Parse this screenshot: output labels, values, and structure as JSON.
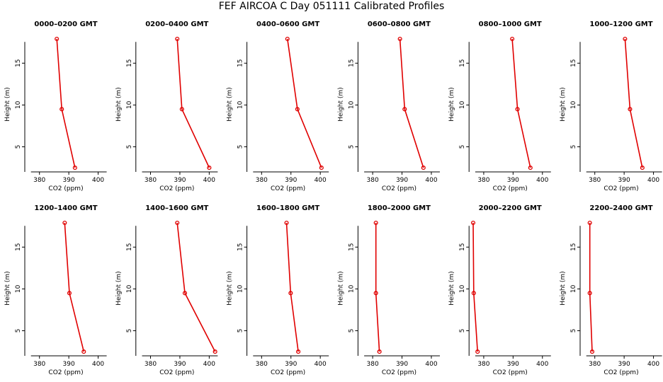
{
  "page": {
    "title": "FEF AIRCOA C  Day 051111  Calibrated Profiles"
  },
  "style": {
    "series_color": "#e00000",
    "axis_color": "#000000",
    "background": "#ffffff"
  },
  "chart_data": [
    {
      "type": "line",
      "title": "0000–0200 GMT",
      "xlabel": "CO2 (ppm)",
      "ylabel": "Height (m)",
      "xlim": [
        375,
        403
      ],
      "ylim": [
        2,
        19
      ],
      "xticks": [
        380,
        390,
        400
      ],
      "yticks": [
        5,
        10,
        15
      ],
      "grid": false,
      "x": [
        392.1,
        387.6,
        385.9
      ],
      "y": [
        2.5,
        9.5,
        17.9
      ]
    },
    {
      "type": "line",
      "title": "0200–0400 GMT",
      "xlabel": "CO2 (ppm)",
      "ylabel": "Height (m)",
      "xlim": [
        375,
        403
      ],
      "ylim": [
        2,
        19
      ],
      "xticks": [
        380,
        390,
        400
      ],
      "yticks": [
        5,
        10,
        15
      ],
      "grid": false,
      "x": [
        400.0,
        390.7,
        389.1
      ],
      "y": [
        2.5,
        9.5,
        17.9
      ]
    },
    {
      "type": "line",
      "title": "0400–0600 GMT",
      "xlabel": "CO2 (ppm)",
      "ylabel": "Height (m)",
      "xlim": [
        375,
        403
      ],
      "ylim": [
        2,
        19
      ],
      "xticks": [
        380,
        390,
        400
      ],
      "yticks": [
        5,
        10,
        15
      ],
      "grid": false,
      "x": [
        400.4,
        392.2,
        388.8
      ],
      "y": [
        2.5,
        9.5,
        17.9
      ]
    },
    {
      "type": "line",
      "title": "0600–0800 GMT",
      "xlabel": "CO2 (ppm)",
      "ylabel": "Height (m)",
      "xlim": [
        375,
        403
      ],
      "ylim": [
        2,
        19
      ],
      "xticks": [
        380,
        390,
        400
      ],
      "yticks": [
        5,
        10,
        15
      ],
      "grid": false,
      "x": [
        397.3,
        390.9,
        389.3
      ],
      "y": [
        2.5,
        9.5,
        17.9
      ]
    },
    {
      "type": "line",
      "title": "0800–1000 GMT",
      "xlabel": "CO2 (ppm)",
      "ylabel": "Height (m)",
      "xlim": [
        375,
        403
      ],
      "ylim": [
        2,
        19
      ],
      "xticks": [
        380,
        390,
        400
      ],
      "yticks": [
        5,
        10,
        15
      ],
      "grid": false,
      "x": [
        395.9,
        391.5,
        389.7
      ],
      "y": [
        2.5,
        9.5,
        17.9
      ]
    },
    {
      "type": "line",
      "title": "1000–1200 GMT",
      "xlabel": "CO2 (ppm)",
      "ylabel": "Height (m)",
      "xlim": [
        375,
        403
      ],
      "ylim": [
        2,
        19
      ],
      "xticks": [
        380,
        390,
        400
      ],
      "yticks": [
        5,
        10,
        15
      ],
      "grid": false,
      "x": [
        396.2,
        392.0,
        390.3
      ],
      "y": [
        2.5,
        9.5,
        17.9
      ]
    },
    {
      "type": "line",
      "title": "1200–1400 GMT",
      "xlabel": "CO2 (ppm)",
      "ylabel": "Height (m)",
      "xlim": [
        375,
        403
      ],
      "ylim": [
        2,
        19
      ],
      "xticks": [
        380,
        390,
        400
      ],
      "yticks": [
        5,
        10,
        15
      ],
      "grid": false,
      "x": [
        395.1,
        390.2,
        388.6
      ],
      "y": [
        2.5,
        9.5,
        17.9
      ]
    },
    {
      "type": "line",
      "title": "1400–1600 GMT",
      "xlabel": "CO2 (ppm)",
      "ylabel": "Height (m)",
      "xlim": [
        375,
        403
      ],
      "ylim": [
        2,
        19
      ],
      "xticks": [
        380,
        390,
        400
      ],
      "yticks": [
        5,
        10,
        15
      ],
      "grid": false,
      "x": [
        402.0,
        391.7,
        389.1
      ],
      "y": [
        2.5,
        9.5,
        17.9
      ]
    },
    {
      "type": "line",
      "title": "1600–1800 GMT",
      "xlabel": "CO2 (ppm)",
      "ylabel": "Height (m)",
      "xlim": [
        375,
        403
      ],
      "ylim": [
        2,
        19
      ],
      "xticks": [
        380,
        390,
        400
      ],
      "yticks": [
        5,
        10,
        15
      ],
      "grid": false,
      "x": [
        392.5,
        389.9,
        388.5
      ],
      "y": [
        2.5,
        9.5,
        17.9
      ]
    },
    {
      "type": "line",
      "title": "1800–2000 GMT",
      "xlabel": "CO2 (ppm)",
      "ylabel": "Height (m)",
      "xlim": [
        375,
        403
      ],
      "ylim": [
        2,
        19
      ],
      "xticks": [
        380,
        390,
        400
      ],
      "yticks": [
        5,
        10,
        15
      ],
      "grid": false,
      "x": [
        382.3,
        381.1,
        381.1
      ],
      "y": [
        2.5,
        9.5,
        17.9
      ]
    },
    {
      "type": "line",
      "title": "2000–2200 GMT",
      "xlabel": "CO2 (ppm)",
      "ylabel": "Height (m)",
      "xlim": [
        375,
        403
      ],
      "ylim": [
        2,
        19
      ],
      "xticks": [
        380,
        390,
        400
      ],
      "yticks": [
        5,
        10,
        15
      ],
      "grid": false,
      "x": [
        377.9,
        376.6,
        376.4
      ],
      "y": [
        2.5,
        9.5,
        17.9
      ]
    },
    {
      "type": "line",
      "title": "2200–2400 GMT",
      "xlabel": "CO2 (ppm)",
      "ylabel": "Height (m)",
      "xlim": [
        375,
        403
      ],
      "ylim": [
        2,
        19
      ],
      "xticks": [
        380,
        390,
        400
      ],
      "yticks": [
        5,
        10,
        15
      ],
      "grid": false,
      "x": [
        379.1,
        378.3,
        378.3
      ],
      "y": [
        2.5,
        9.5,
        17.9
      ]
    }
  ]
}
